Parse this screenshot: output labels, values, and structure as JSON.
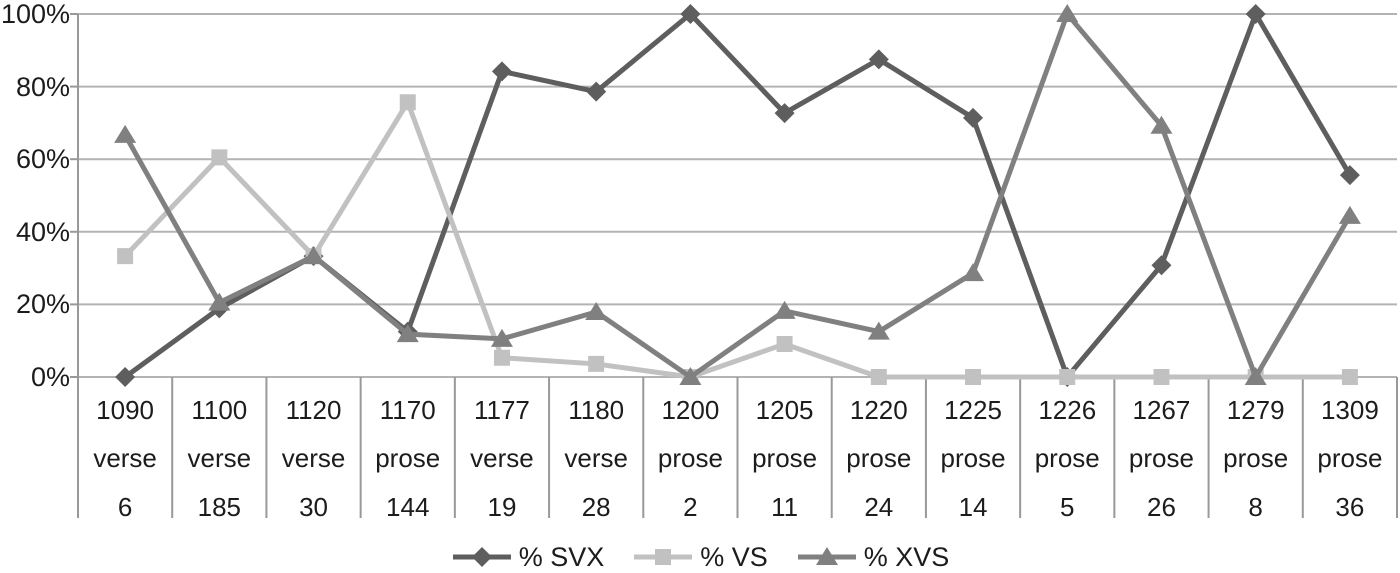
{
  "chart_data": {
    "type": "line",
    "title": "",
    "xlabel": "",
    "ylabel": "",
    "grid": true,
    "legend_position": "bottom",
    "yaxis": {
      "min": 0,
      "max": 100,
      "tick_step": 20,
      "tick_labels": [
        "0%",
        "20%",
        "40%",
        "60%",
        "80%",
        "100%"
      ]
    },
    "categories": [
      {
        "year": "1090",
        "type": "verse",
        "count": "6"
      },
      {
        "year": "1100",
        "type": "verse",
        "count": "185"
      },
      {
        "year": "1120",
        "type": "verse",
        "count": "30"
      },
      {
        "year": "1170",
        "type": "prose",
        "count": "144"
      },
      {
        "year": "1177",
        "type": "verse",
        "count": "19"
      },
      {
        "year": "1180",
        "type": "verse",
        "count": "28"
      },
      {
        "year": "1200",
        "type": "prose",
        "count": "2"
      },
      {
        "year": "1205",
        "type": "prose",
        "count": "11"
      },
      {
        "year": "1220",
        "type": "prose",
        "count": "24"
      },
      {
        "year": "1225",
        "type": "prose",
        "count": "14"
      },
      {
        "year": "1226",
        "type": "prose",
        "count": "5"
      },
      {
        "year": "1267",
        "type": "prose",
        "count": "26"
      },
      {
        "year": "1279",
        "type": "prose",
        "count": "8"
      },
      {
        "year": "1309",
        "type": "prose",
        "count": "36"
      }
    ],
    "series": [
      {
        "name": "% SVX",
        "marker": "diamond",
        "color": "#5e5e5e",
        "values": [
          0,
          18.9,
          33.3,
          12.5,
          84.2,
          78.6,
          100,
          72.7,
          87.5,
          71.4,
          0,
          30.8,
          100,
          55.6
        ]
      },
      {
        "name": "% VS",
        "marker": "square",
        "color": "#c1c1c1",
        "values": [
          33.3,
          60.5,
          33.3,
          75.7,
          5.3,
          3.6,
          0,
          9.1,
          0,
          0,
          0,
          0,
          0,
          0
        ]
      },
      {
        "name": "% XVS",
        "marker": "triangle",
        "color": "#808080",
        "values": [
          66.7,
          20.5,
          33.3,
          11.8,
          10.5,
          17.9,
          0,
          18.2,
          12.5,
          28.6,
          100,
          69.2,
          0,
          44.4
        ]
      }
    ],
    "colors": {
      "gridline": "#b3b3b3",
      "axis": "#999999",
      "text": "#1c1c1c"
    }
  }
}
